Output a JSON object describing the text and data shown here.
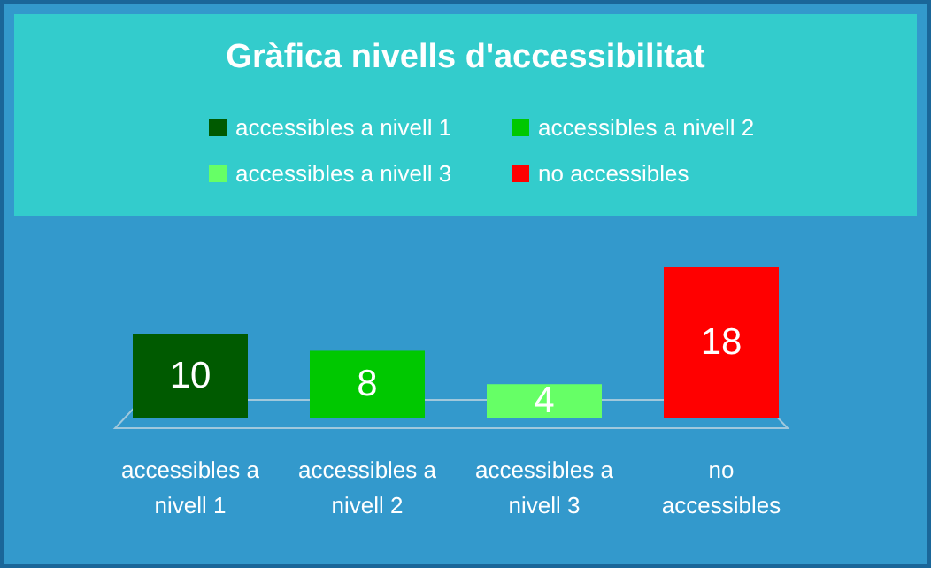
{
  "chart_data": {
    "type": "bar",
    "title": "Gràfica nivells d'accessibilitat",
    "categories": [
      "accessibles a nivell 1",
      "accessibles a nivell 2",
      "accessibles a nivell 3",
      "no accessibles"
    ],
    "stacked": true,
    "series": [
      {
        "name": "accessibles a nivell 1",
        "color": "#005a00",
        "values": [
          10,
          null,
          null,
          null
        ]
      },
      {
        "name": "accessibles a nivell 2",
        "color": "#00c800",
        "values": [
          null,
          8,
          null,
          null
        ]
      },
      {
        "name": "accessibles a nivell 3",
        "color": "#66ff66",
        "values": [
          null,
          null,
          4,
          null
        ]
      },
      {
        "name": "no accessibles",
        "color": "#ff0000",
        "values": [
          null,
          null,
          null,
          18
        ]
      }
    ],
    "data_labels": true,
    "legend": "top"
  }
}
